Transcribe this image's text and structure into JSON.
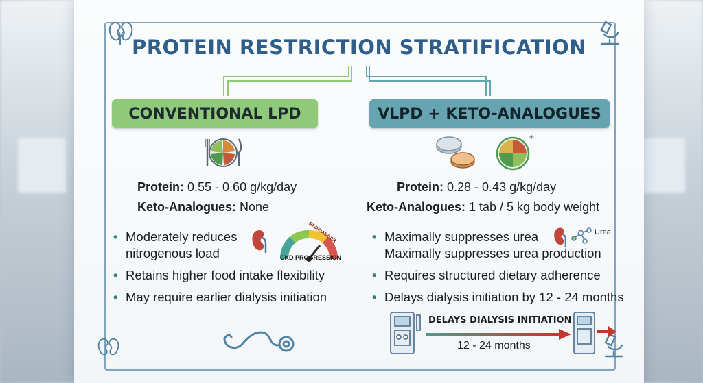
{
  "title": "PROTEIN RESTRICTION STRATIFICATION",
  "colors": {
    "title": "#2e5f8a",
    "left_pill": "#8fc97a",
    "right_pill": "#67a4b2",
    "frame": "#7fa6bd",
    "bullet": "#2e8a6a"
  },
  "left": {
    "heading": "CONVENTIONAL LPD",
    "protein_label": "Protein:",
    "protein_value": " 0.55 - 0.60 g/kg/day",
    "keto_label": "Keto-Analogues:",
    "keto_value": " None",
    "bullets": [
      "Moderately reduces",
      "nitrogenous load",
      "Retains higher food intake flexibility",
      "May require earlier dialysis initiation"
    ],
    "gauge_label": "CKD PROGRESSION",
    "gauge_red_text": "RED/DANGER",
    "icons": [
      "plate-icon",
      "kidney-icon",
      "gauge-icon",
      "stethoscope-icon"
    ]
  },
  "right": {
    "heading": "VLPD + KETO-ANALOGUES",
    "protein_label": "Protein:",
    "protein_value": " 0.28 - 0.43 g/kg/day",
    "keto_label": "Keto-Analogues:",
    "keto_value": " 1 tab / 5 kg body weight",
    "bullets": [
      "Maximally suppresses urea",
      "Maximally suppresses urea production",
      "Requires structured dietary adherence",
      "Delays dialysis initiation by 12 - 24 months"
    ],
    "urea_label": "Urea",
    "dialysis_title": "DELAYS DIALYSIS INITIATION",
    "dialysis_months": "12 - 24 months",
    "icons": [
      "pills-icon",
      "plate-icon",
      "kidney-icon",
      "molecule-icon",
      "dialysis-machine-icon",
      "arrow-icon"
    ]
  },
  "corner_icons": [
    "kidney-icon",
    "microscope-icon"
  ]
}
